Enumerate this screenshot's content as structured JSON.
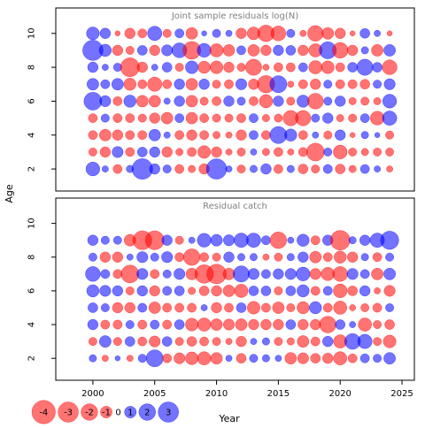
{
  "colors": {
    "positive": "#0000FF",
    "negative": "#FF0000",
    "frame": "#000000",
    "title": "#808080",
    "bubble_opacity": 0.55
  },
  "axes": {
    "xlabel": "Year",
    "ylabel": "Age",
    "x_ticks": [
      "2000",
      "2005",
      "2010",
      "2015",
      "2020",
      "2025"
    ],
    "y_ticks": [
      "2",
      "4",
      "6",
      "8",
      "10"
    ]
  },
  "legend": {
    "entries": [
      {
        "label": "-4",
        "value": -4
      },
      {
        "label": "-3",
        "value": -3
      },
      {
        "label": "-2",
        "value": -2
      },
      {
        "label": "-1",
        "value": -1
      },
      {
        "label": "0",
        "value": 0
      },
      {
        "label": "1",
        "value": 1
      },
      {
        "label": "2",
        "value": 2
      },
      {
        "label": "3",
        "value": 3
      }
    ]
  },
  "chart_data": [
    {
      "type": "scatter",
      "title": "Joint sample residuals log(N)",
      "xlabel": "",
      "ylabel": "Age",
      "xlim": [
        1997,
        2026
      ],
      "ylim": [
        0.7,
        11.5
      ],
      "size_scale": [
        -4,
        3
      ],
      "years": [
        2000,
        2001,
        2002,
        2003,
        2004,
        2005,
        2006,
        2007,
        2008,
        2009,
        2010,
        2011,
        2012,
        2013,
        2014,
        2015,
        2016,
        2017,
        2018,
        2019,
        2020,
        2021,
        2022,
        2023,
        2024
      ],
      "ages": [
        2,
        3,
        4,
        5,
        6,
        7,
        8,
        9,
        10
      ],
      "residuals": {
        "10": [
          1.2,
          0.8,
          -0.2,
          -0.8,
          -0.6,
          1.5,
          -0.5,
          0.6,
          -1.0,
          0.2,
          0.5,
          0.3,
          -0.8,
          -1.2,
          -2.0,
          -1.6,
          0.5,
          -0.3,
          -1.8,
          -1.0,
          -0.8,
          -0.2,
          0.7,
          0.3,
          -0.2
        ],
        "9": [
          3.0,
          1.1,
          -0.8,
          -0.5,
          0.7,
          -0.8,
          0.9,
          1.6,
          -2.3,
          1.4,
          -1.3,
          -1.0,
          0.6,
          -1.0,
          -0.8,
          0.8,
          0.7,
          -0.8,
          -1.3,
          2.1,
          -1.8,
          -0.8,
          0.4,
          -1.0,
          1.0
        ],
        "8": [
          0.8,
          0.3,
          0.5,
          -2.6,
          -0.8,
          0.3,
          0.7,
          -0.5,
          1.2,
          -1.1,
          -1.2,
          -0.8,
          -0.5,
          -1.9,
          -0.3,
          -0.6,
          -0.6,
          0.6,
          -1.3,
          -1.2,
          -0.6,
          0.7,
          1.9,
          0.7,
          -1.6
        ],
        "7": [
          1.0,
          0.6,
          1.0,
          -1.1,
          -0.6,
          -1.5,
          -0.6,
          0.8,
          -1.0,
          0.8,
          -0.5,
          -0.6,
          0.9,
          -0.8,
          -2.2,
          2.1,
          -0.3,
          -0.6,
          -0.8,
          0.5,
          -0.6,
          -0.6,
          -0.7,
          0.5,
          0.9
        ],
        "6": [
          2.3,
          0.9,
          -0.6,
          1.1,
          -1.0,
          -1.0,
          0.3,
          0.8,
          -1.0,
          -0.5,
          -0.6,
          0.8,
          0.5,
          -0.6,
          -1.3,
          0.8,
          -0.5,
          1.1,
          -1.8,
          0.5,
          0.8,
          -0.4,
          -0.5,
          -0.4,
          1.4
        ],
        "5": [
          -0.6,
          0.5,
          -0.6,
          -0.6,
          -0.5,
          -0.8,
          -1.0,
          0.6,
          -1.0,
          -0.6,
          -0.5,
          -0.5,
          -0.6,
          0.6,
          -0.4,
          -0.5,
          -1.7,
          -1.7,
          0.5,
          0.8,
          -0.4,
          -0.5,
          0.6,
          -1.4,
          1.5
        ],
        "4": [
          -0.6,
          -1.0,
          -0.8,
          -0.6,
          -0.6,
          1.0,
          0.3,
          -0.6,
          -0.8,
          -0.6,
          -0.4,
          -0.3,
          -0.8,
          0.6,
          -0.6,
          2.1,
          1.1,
          -0.6,
          0.3,
          -0.5,
          0.8,
          -0.2,
          0.4,
          0.2,
          -0.5
        ],
        "3": [
          -0.5,
          -0.8,
          0.9,
          -0.6,
          0.7,
          0.8,
          -0.8,
          -0.4,
          -0.6,
          -1.2,
          -0.8,
          -0.3,
          -0.5,
          0.3,
          -0.4,
          -0.6,
          -0.3,
          -0.6,
          -2.3,
          0.5,
          -1.4,
          -0.5,
          -0.4,
          -0.5,
          -0.5
        ],
        "2": [
          1.4,
          0.3,
          -0.6,
          0.4,
          3.1,
          0.8,
          0.5,
          -0.6,
          -0.4,
          -0.8,
          3.0,
          0.3,
          -0.5,
          0.4,
          0.8,
          -0.6,
          0.4,
          -0.7,
          -0.5,
          0.6,
          -0.7,
          -0.4,
          0.6,
          0.3,
          -0.3
        ]
      }
    },
    {
      "type": "scatter",
      "title": "Residual catch",
      "xlabel": "Year",
      "ylabel": "Age",
      "xlim": [
        1997,
        2026
      ],
      "ylim": [
        0.7,
        11.5
      ],
      "size_scale": [
        -4,
        3
      ],
      "years": [
        2000,
        2001,
        2002,
        2003,
        2004,
        2005,
        2006,
        2007,
        2008,
        2009,
        2010,
        2011,
        2012,
        2013,
        2014,
        2015,
        2016,
        2017,
        2018,
        2019,
        2020,
        2021,
        2022,
        2023,
        2024
      ],
      "ages": [
        2,
        3,
        4,
        5,
        6,
        7,
        8,
        9
      ],
      "residuals": {
        "9": [
          0.8,
          0.5,
          0.5,
          -1.0,
          -2.6,
          -2.6,
          0.8,
          -0.5,
          0.3,
          1.4,
          1.0,
          0.9,
          1.5,
          1.5,
          0.6,
          -2.0,
          0.3,
          1.1,
          -0.6,
          0.8,
          -2.8,
          0.4,
          0.8,
          1.5,
          2.4
        ],
        "8": [
          0.5,
          -0.8,
          -0.8,
          0.3,
          0.9,
          0.5,
          0.9,
          -0.6,
          -2.0,
          -0.6,
          -0.5,
          0.8,
          0.4,
          0.4,
          -0.3,
          -0.5,
          0.4,
          0.8,
          -1.0,
          -0.6,
          -1.1,
          -0.8,
          0.4,
          -0.6,
          0.5
        ],
        "7": [
          1.6,
          0.6,
          -0.6,
          -2.3,
          0.9,
          -0.6,
          0.5,
          0.9,
          -1.0,
          -2.5,
          -2.8,
          -1.0,
          1.9,
          0.9,
          0.6,
          0.8,
          0.9,
          1.4,
          -0.9,
          -1.3,
          -1.6,
          0.9,
          0.6,
          -1.0,
          1.0
        ],
        "6": [
          1.1,
          0.9,
          0.8,
          -0.5,
          0.8,
          -0.8,
          0.6,
          0.7,
          -0.4,
          -0.7,
          -0.8,
          -1.0,
          -1.3,
          0.7,
          0.7,
          -0.5,
          0.7,
          1.1,
          -0.6,
          0.6,
          -1.4,
          -0.7,
          0.8,
          -0.3,
          -0.9
        ],
        "5": [
          0.7,
          0.5,
          -0.8,
          -0.8,
          0.6,
          -1.0,
          -0.6,
          -0.6,
          -0.6,
          0.3,
          -0.8,
          -0.6,
          0.7,
          -1.2,
          -0.6,
          -1.0,
          -0.5,
          -1.1,
          1.1,
          -0.6,
          -1.3,
          -0.3,
          -0.5,
          -0.6,
          0.5
        ],
        "4": [
          0.8,
          -0.6,
          -0.6,
          0.5,
          -0.6,
          0.6,
          -0.6,
          0.7,
          -1.2,
          -1.3,
          -1.0,
          -0.9,
          -1.0,
          -0.8,
          -0.8,
          -0.8,
          0.7,
          -0.8,
          -0.8,
          -2.0,
          0.7,
          0.3,
          -1.3,
          -0.5,
          -0.7
        ],
        "3": [
          -0.5,
          1.0,
          -0.5,
          0.7,
          -0.6,
          -0.9,
          0.7,
          -0.5,
          -0.7,
          -0.6,
          -0.5,
          -0.3,
          -0.8,
          0.3,
          0.4,
          -0.5,
          -0.4,
          -1.0,
          -0.6,
          0.8,
          -1.3,
          1.8,
          1.5,
          -0.5,
          -1.2
        ],
        "2": [
          0.4,
          -0.3,
          0.2,
          -0.3,
          0.5,
          2.1,
          -0.6,
          -0.9,
          -1.2,
          -1.3,
          -1.0,
          0.3,
          -0.7,
          0.5,
          0.4,
          0.3,
          -1.0,
          -0.9,
          -0.7,
          -0.8,
          -1.3,
          -0.6,
          0.6,
          0.5,
          1.0
        ]
      }
    }
  ]
}
